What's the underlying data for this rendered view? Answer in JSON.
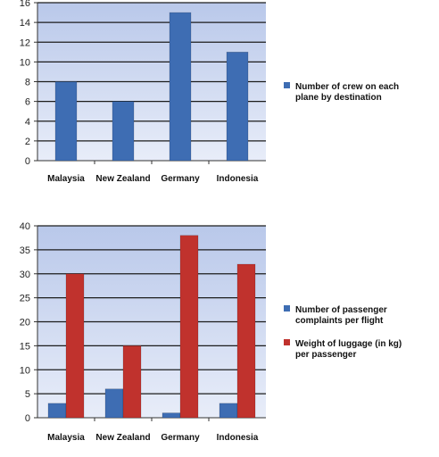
{
  "chart_data": [
    {
      "type": "bar",
      "categories": [
        "Malaysia",
        "New Zealand",
        "Germany",
        "Indonesia"
      ],
      "series": [
        {
          "name": "Number of crew on each plane by destination",
          "values": [
            8,
            6,
            15,
            11
          ],
          "color": "#3e6db3"
        }
      ],
      "ylim": [
        0,
        16
      ],
      "yticks": [
        0,
        2,
        4,
        6,
        8,
        10,
        12,
        14,
        16
      ],
      "legend_lines": [
        [
          "Number of crew on each",
          "plane by destination"
        ]
      ],
      "grid": true,
      "legend_position": "right"
    },
    {
      "type": "bar",
      "categories": [
        "Malaysia",
        "New Zealand",
        "Germany",
        "Indonesia"
      ],
      "series": [
        {
          "name": "Number of passenger complaints per flight",
          "values": [
            3,
            6,
            1,
            3
          ],
          "color": "#3e6db3"
        },
        {
          "name": "Weight of luggage (in kg) per passenger",
          "values": [
            30,
            15,
            38,
            32
          ],
          "color": "#c0322d"
        }
      ],
      "ylim": [
        0,
        40
      ],
      "yticks": [
        0,
        5,
        10,
        15,
        20,
        25,
        30,
        35,
        40
      ],
      "legend_lines": [
        [
          "Number of passenger",
          "complaints per flight"
        ],
        [
          "Weight of luggage (in kg)",
          "per passenger"
        ]
      ],
      "grid": true,
      "legend_position": "right"
    }
  ],
  "colors": {
    "plot_bg_top": "#b9c8ea",
    "plot_bg_bottom": "#e8edf9",
    "grid": "#1c1c1c"
  }
}
